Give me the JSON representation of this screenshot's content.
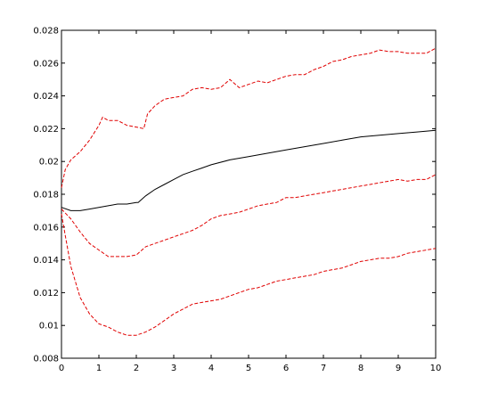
{
  "chart_data": {
    "type": "line",
    "title": "",
    "xlabel": "",
    "ylabel": "",
    "xlim": [
      0,
      10
    ],
    "ylim": [
      0.008,
      0.028
    ],
    "grid": false,
    "legend": "none",
    "x_ticks": [
      "0",
      "1",
      "2",
      "3",
      "4",
      "5",
      "6",
      "7",
      "8",
      "9",
      "10"
    ],
    "y_ticks": [
      "0.008",
      "0.01",
      "0.012",
      "0.014",
      "0.016",
      "0.018",
      "0.02",
      "0.022",
      "0.024",
      "0.026",
      "0.028"
    ],
    "series": [
      {
        "color": "#000000",
        "style": "solid",
        "x": [
          0,
          0.25,
          0.5,
          0.75,
          1,
          1.25,
          1.5,
          1.75,
          2,
          2.05,
          2.25,
          2.5,
          2.75,
          3,
          3.25,
          3.5,
          3.75,
          4,
          4.5,
          5,
          5.5,
          6,
          6.5,
          7,
          7.5,
          8,
          8.5,
          9,
          9.5,
          10
        ],
        "y": [
          0.0172,
          0.017,
          0.017,
          0.0171,
          0.0172,
          0.0173,
          0.0174,
          0.0174,
          0.0175,
          0.0175,
          0.0179,
          0.0183,
          0.0186,
          0.0189,
          0.0192,
          0.0194,
          0.0196,
          0.0198,
          0.0201,
          0.0203,
          0.0205,
          0.0207,
          0.0209,
          0.0211,
          0.0213,
          0.0215,
          0.0216,
          0.0217,
          0.0218,
          0.0219
        ]
      },
      {
        "color": "#e00000",
        "style": "dashed",
        "x": [
          0,
          0.1,
          0.25,
          0.5,
          0.75,
          1,
          1.1,
          1.25,
          1.5,
          1.75,
          2,
          2.2,
          2.3,
          2.5,
          2.75,
          3,
          3.25,
          3.5,
          3.75,
          4,
          4.25,
          4.5,
          4.75,
          5,
          5.25,
          5.5,
          5.75,
          6,
          6.25,
          6.5,
          6.75,
          7,
          7.25,
          7.5,
          7.75,
          8,
          8.25,
          8.5,
          8.75,
          9,
          9.25,
          9.5,
          9.75,
          10
        ],
        "y": [
          0.0184,
          0.0195,
          0.0201,
          0.0206,
          0.0213,
          0.0222,
          0.0227,
          0.0225,
          0.0225,
          0.0222,
          0.0221,
          0.022,
          0.0229,
          0.0234,
          0.0238,
          0.0239,
          0.024,
          0.0244,
          0.0245,
          0.0244,
          0.0245,
          0.025,
          0.0245,
          0.0247,
          0.0249,
          0.0248,
          0.025,
          0.0252,
          0.0253,
          0.0253,
          0.0256,
          0.0258,
          0.0261,
          0.0262,
          0.0264,
          0.0265,
          0.0266,
          0.0268,
          0.0267,
          0.0267,
          0.0266,
          0.0266,
          0.0266,
          0.0269
        ]
      },
      {
        "color": "#e00000",
        "style": "dashed",
        "x": [
          0,
          0.25,
          0.5,
          0.75,
          1,
          1.25,
          1.5,
          1.75,
          2,
          2.25,
          2.5,
          2.75,
          3,
          3.25,
          3.5,
          3.75,
          4,
          4.25,
          4.5,
          4.75,
          5,
          5.25,
          5.5,
          5.75,
          6,
          6.25,
          6.5,
          6.75,
          7,
          7.25,
          7.5,
          7.75,
          8,
          8.25,
          8.5,
          8.75,
          9,
          9.25,
          9.5,
          9.75,
          10
        ],
        "y": [
          0.0171,
          0.0165,
          0.0157,
          0.015,
          0.0146,
          0.0142,
          0.0142,
          0.0142,
          0.0143,
          0.0148,
          0.015,
          0.0152,
          0.0154,
          0.0156,
          0.0158,
          0.0161,
          0.0165,
          0.0167,
          0.0168,
          0.0169,
          0.0171,
          0.0173,
          0.0174,
          0.0175,
          0.0178,
          0.0178,
          0.0179,
          0.018,
          0.0181,
          0.0182,
          0.0183,
          0.0184,
          0.0185,
          0.0186,
          0.0187,
          0.0188,
          0.0189,
          0.0188,
          0.0189,
          0.0189,
          0.0192
        ]
      },
      {
        "color": "#e00000",
        "style": "dashed",
        "x": [
          0,
          0.1,
          0.25,
          0.5,
          0.75,
          1,
          1.25,
          1.5,
          1.75,
          2,
          2.25,
          2.5,
          2.75,
          3,
          3.25,
          3.5,
          3.75,
          4,
          4.25,
          4.5,
          4.75,
          5,
          5.25,
          5.5,
          5.75,
          6,
          6.25,
          6.5,
          6.75,
          7,
          7.25,
          7.5,
          7.75,
          8,
          8.25,
          8.5,
          8.75,
          9,
          9.25,
          9.5,
          9.75,
          10
        ],
        "y": [
          0.0168,
          0.0155,
          0.0136,
          0.0117,
          0.0107,
          0.0101,
          0.0099,
          0.0096,
          0.0094,
          0.0094,
          0.0096,
          0.0099,
          0.0103,
          0.0107,
          0.011,
          0.0113,
          0.0114,
          0.0115,
          0.0116,
          0.0118,
          0.012,
          0.0122,
          0.0123,
          0.0125,
          0.0127,
          0.0128,
          0.0129,
          0.013,
          0.0131,
          0.0133,
          0.0134,
          0.0135,
          0.0137,
          0.0139,
          0.014,
          0.0141,
          0.0141,
          0.0142,
          0.0144,
          0.0145,
          0.0146,
          0.0147
        ]
      }
    ]
  }
}
